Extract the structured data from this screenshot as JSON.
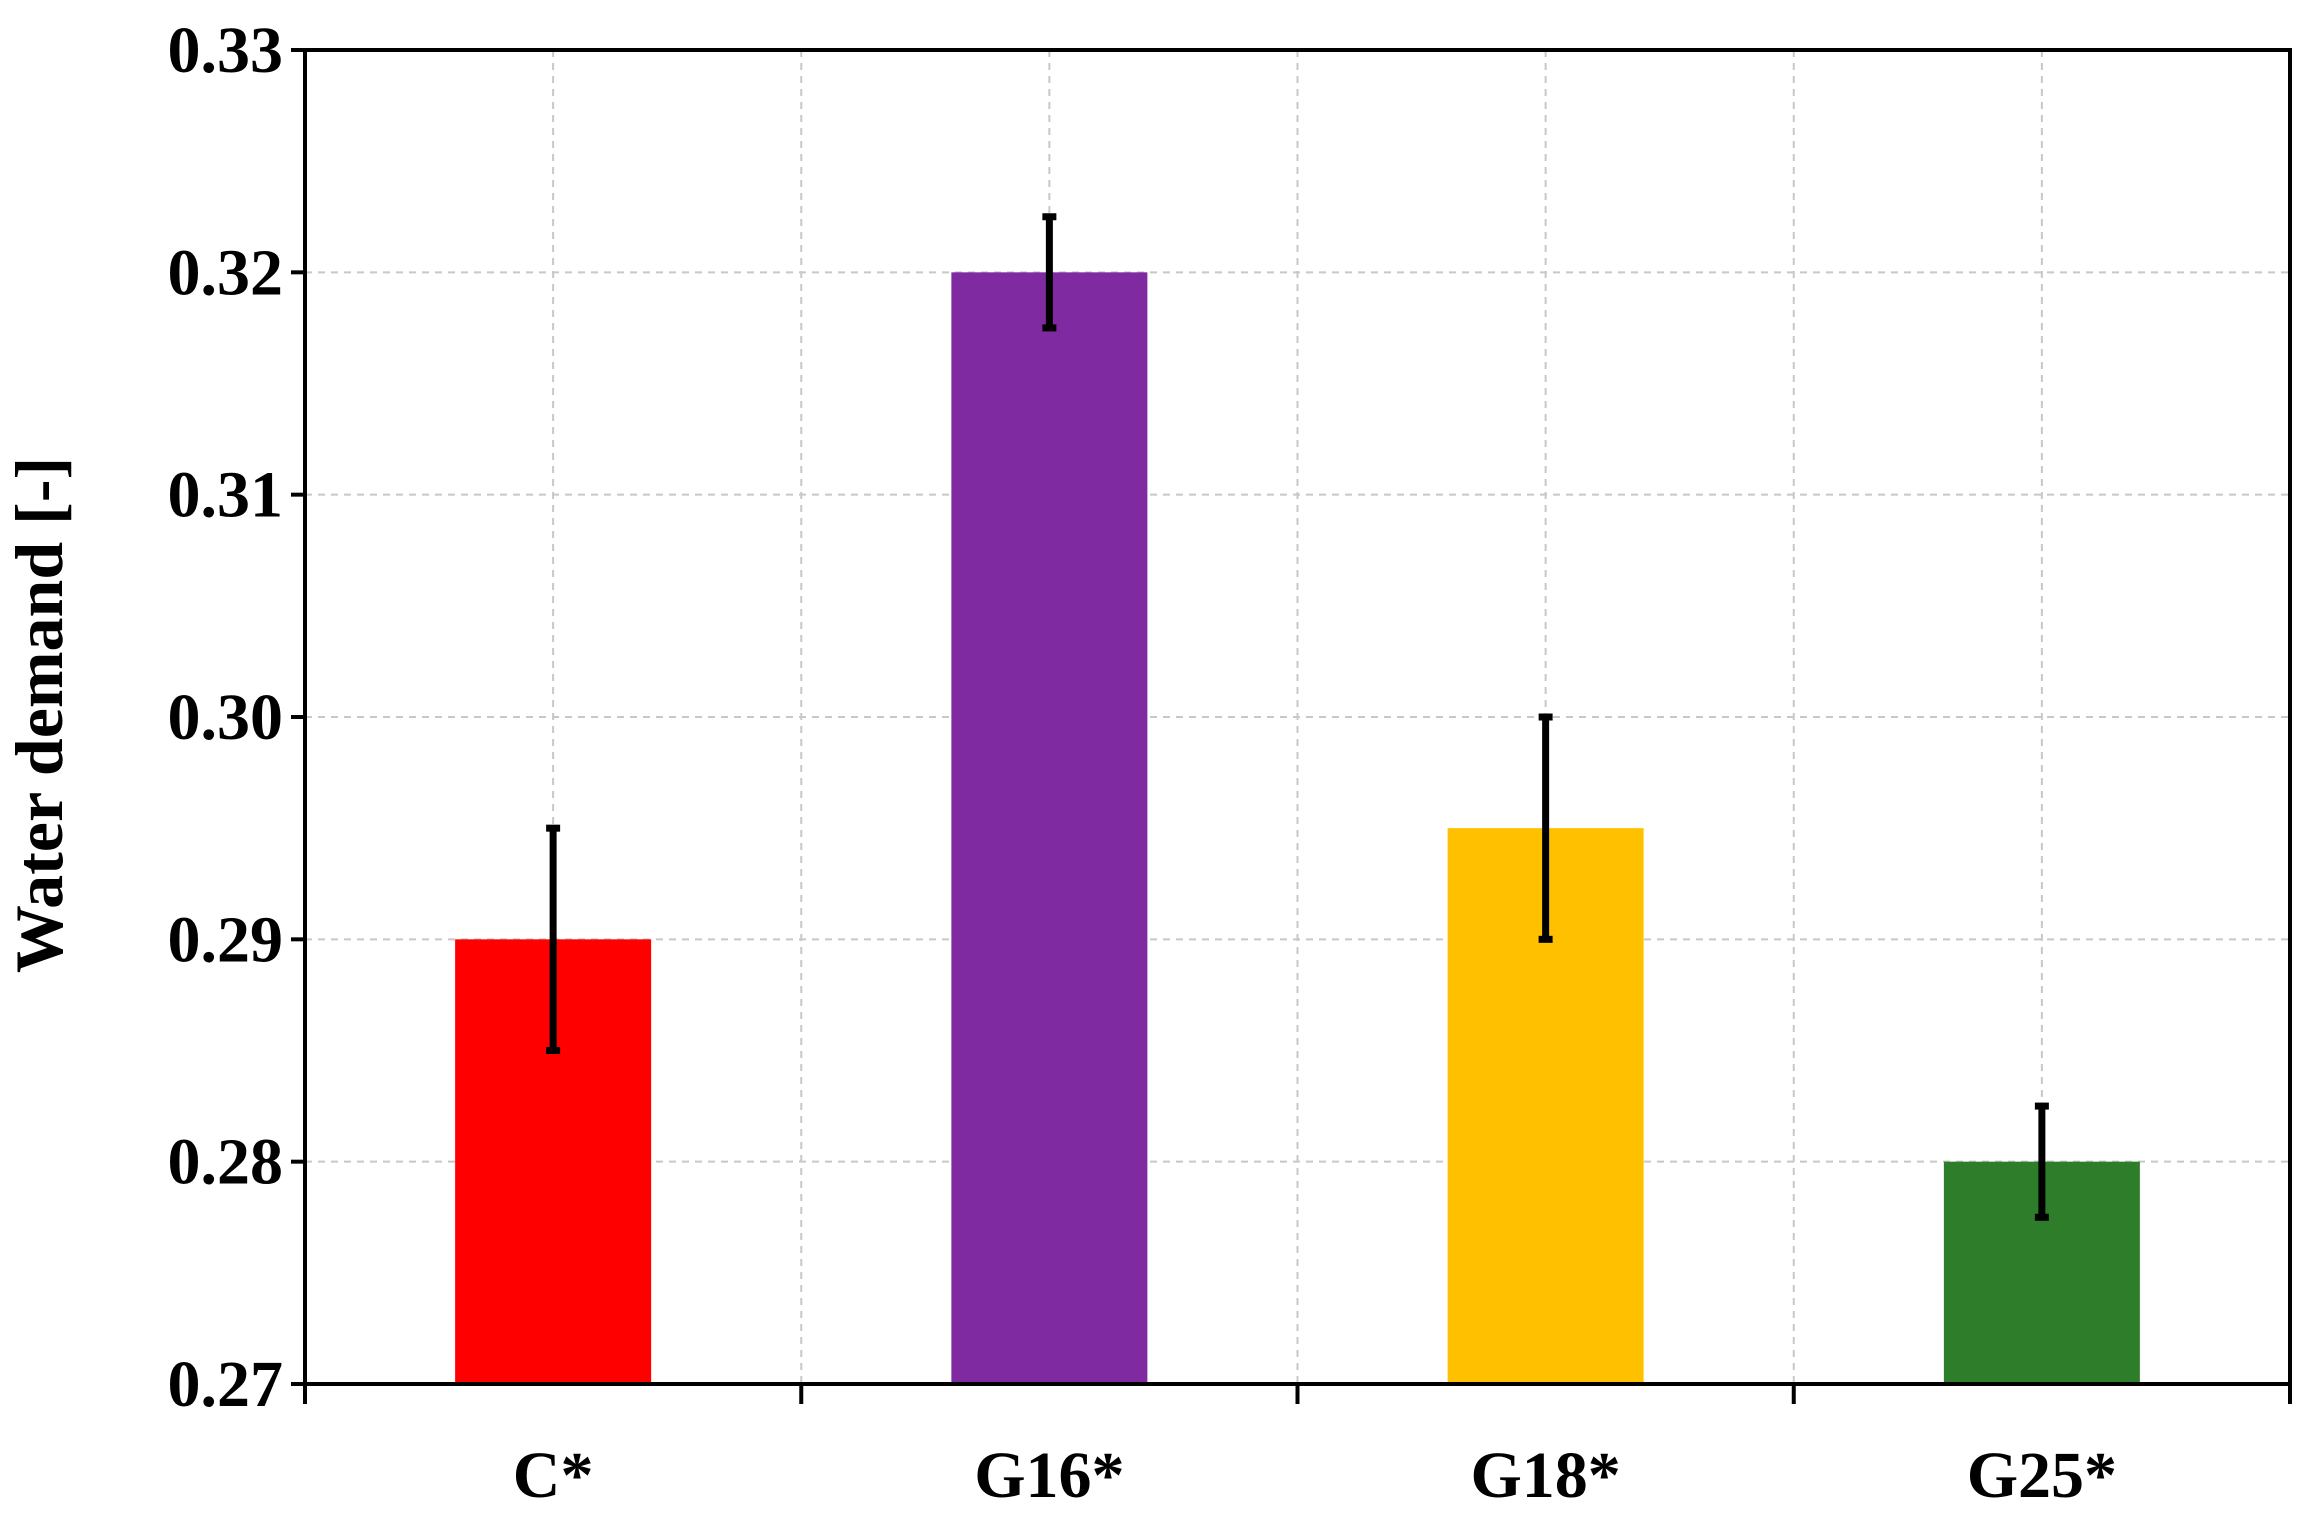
{
  "chart_data": {
    "type": "bar",
    "title": "",
    "xlabel": "",
    "ylabel": "Water demand [-]",
    "ylim": [
      0.27,
      0.33
    ],
    "yticks": [
      "0.27",
      "0.28",
      "0.29",
      "0.30",
      "0.31",
      "0.32",
      "0.33"
    ],
    "ytick_values": [
      0.27,
      0.28,
      0.29,
      0.3,
      0.31,
      0.32,
      0.33
    ],
    "categories": [
      "C*",
      "G16*",
      "G18*",
      "G25*"
    ],
    "values": [
      0.29,
      0.32,
      0.295,
      0.28
    ],
    "errors": [
      0.005,
      0.0025,
      0.005,
      0.0025
    ],
    "colors": [
      "#ff0000",
      "#7f2aa0",
      "#ffc000",
      "#2e7d2a"
    ],
    "grid": true,
    "legend": "none"
  }
}
